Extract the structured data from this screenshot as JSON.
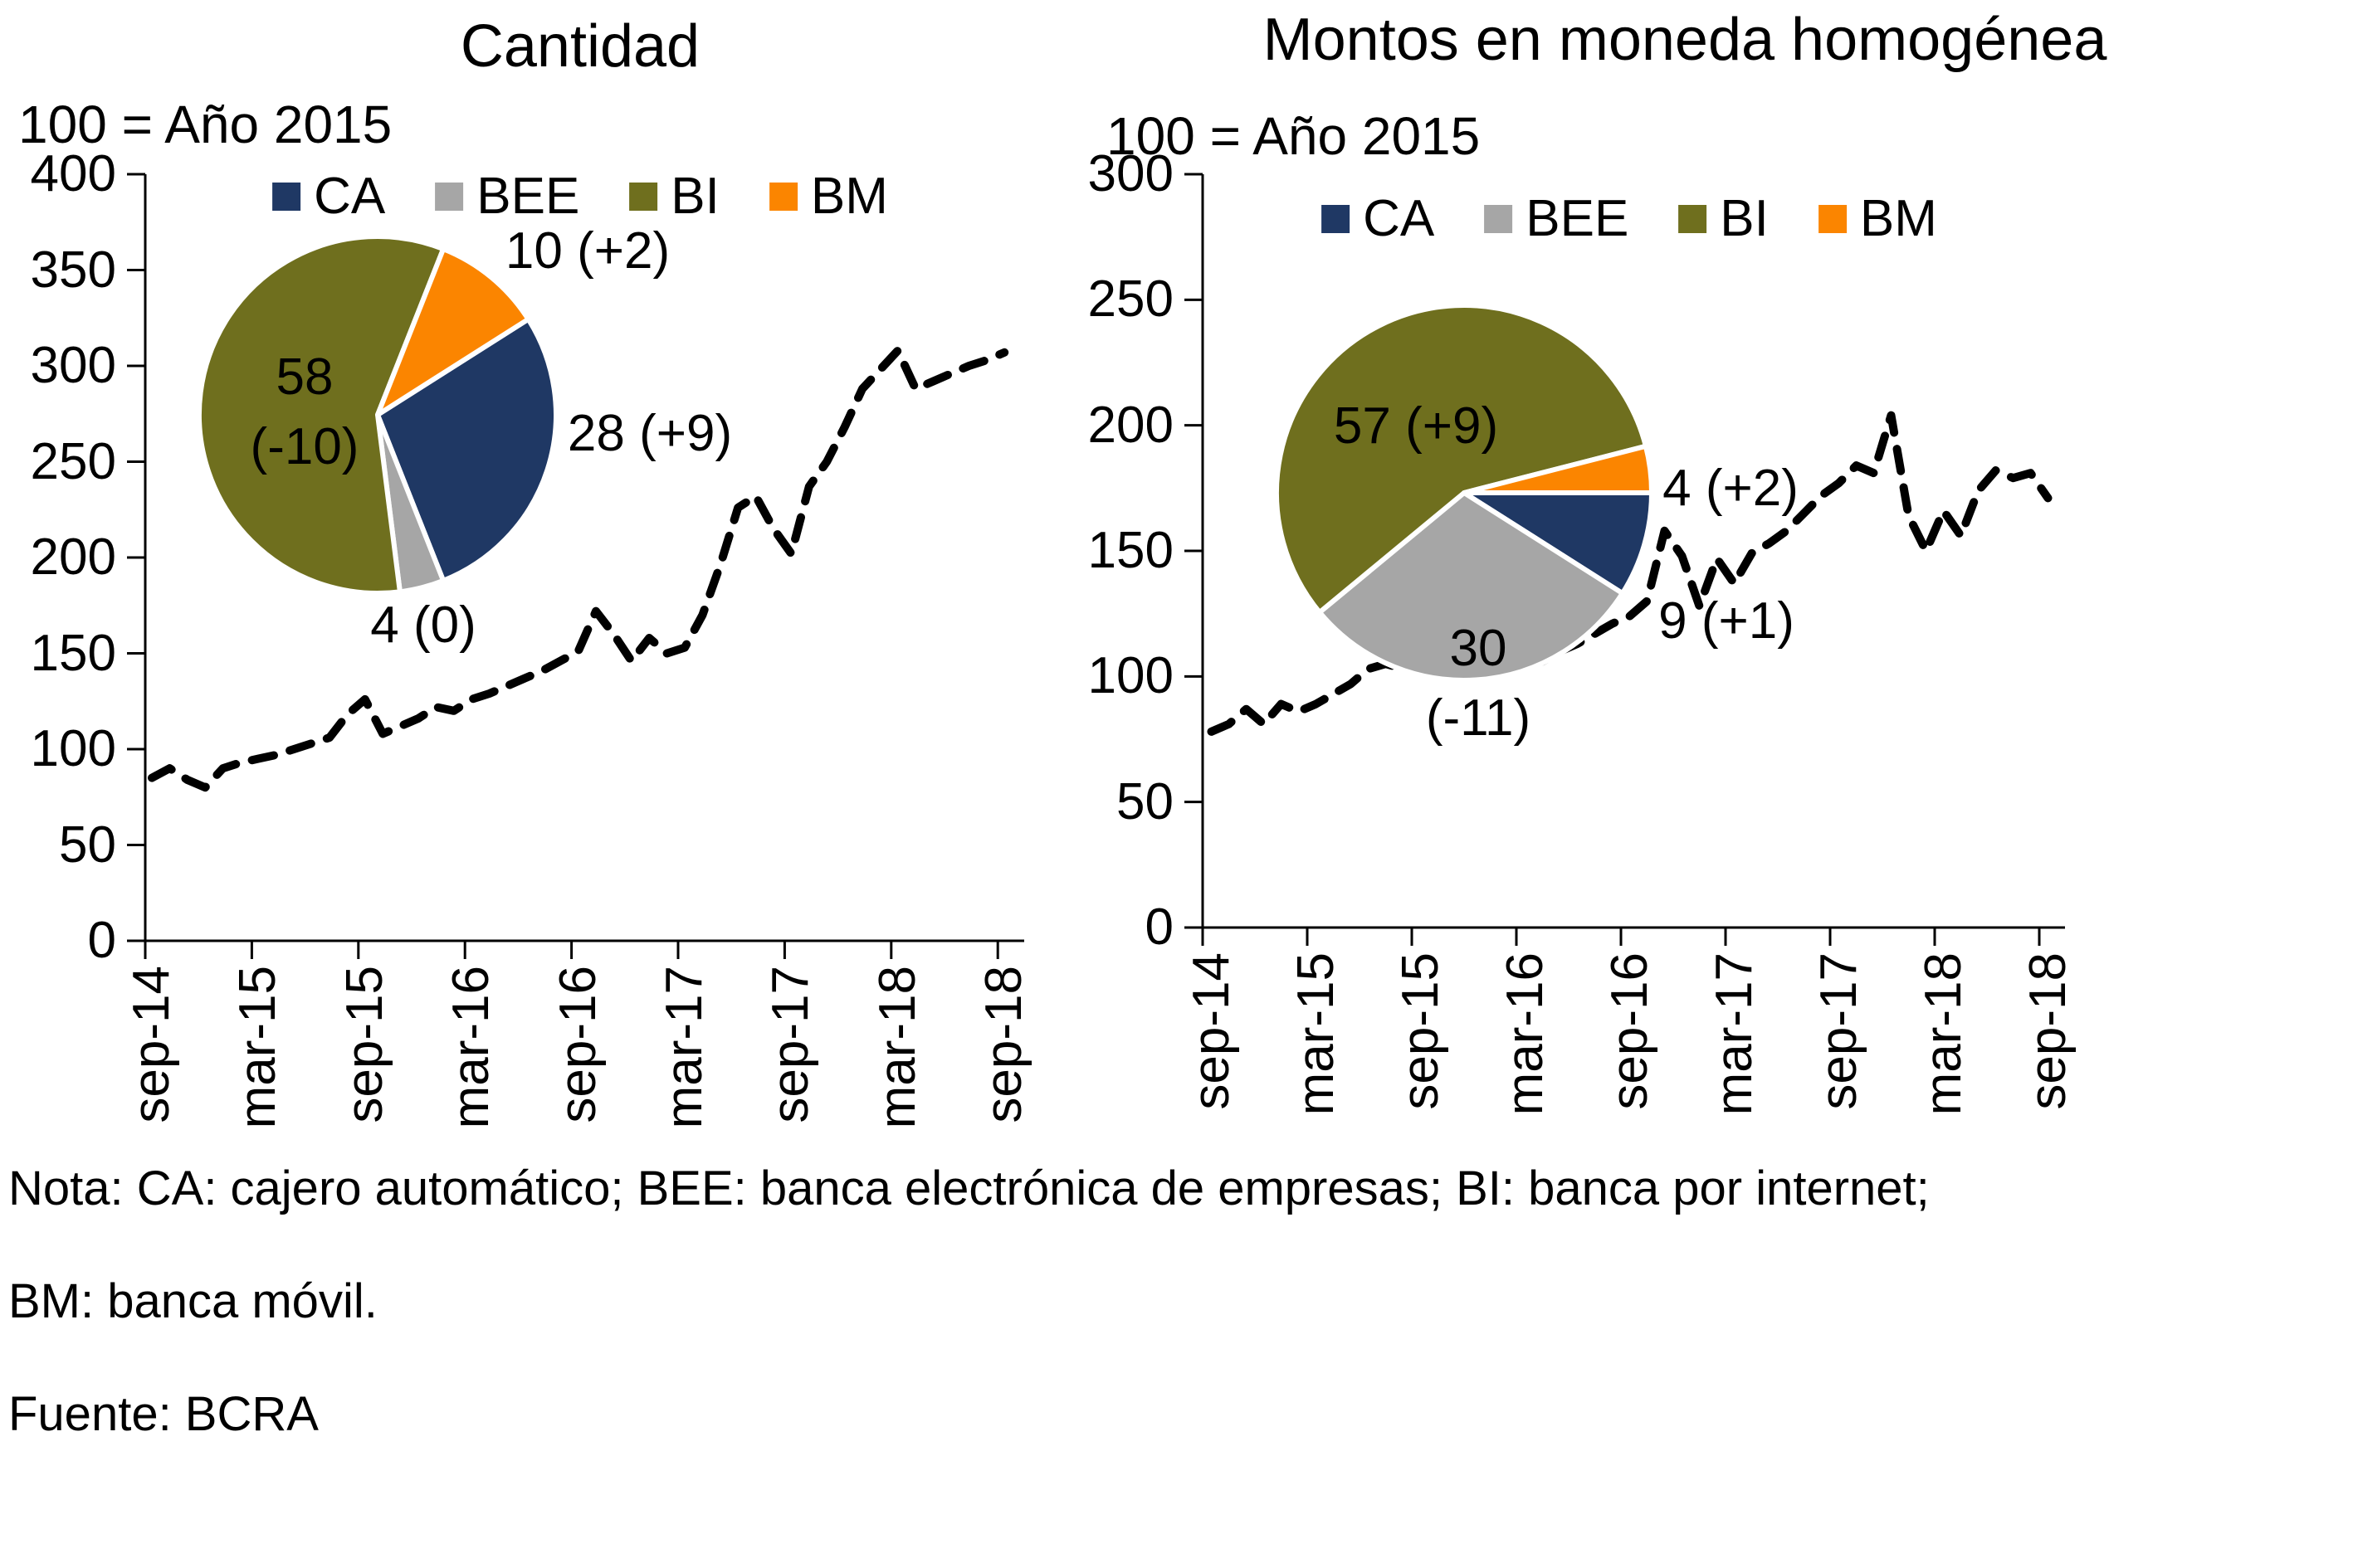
{
  "note": {
    "line1": "Nota: CA: cajero automático; BEE: banca electrónica de empresas; BI: banca por internet;",
    "line2": "BM: banca móvil.",
    "line3": "Fuente: BCRA"
  },
  "colors": {
    "ca_navy": "#1F3864",
    "bee_gray": "#A6A6A6",
    "bi_olive": "#6F6F1E",
    "bm_orange": "#FB8500",
    "line_black": "#000000"
  },
  "chart_data": [
    {
      "type": "line",
      "title": "Cantidad",
      "subtitle": "100 = Año 2015",
      "xlabel": "",
      "ylabel": "",
      "ylim": [
        0,
        400
      ],
      "y_ticks": [
        400,
        350,
        300,
        250,
        200,
        150,
        100,
        50,
        0
      ],
      "x_tick_labels": [
        "sep-14",
        "mar-15",
        "sep-15",
        "mar-16",
        "sep-16",
        "mar-17",
        "sep-17",
        "mar-18",
        "sep-18"
      ],
      "x_frequency": "monthly from sep-2014 to sep-2018 (49 points)",
      "grid": false,
      "legend": {
        "labels": [
          "CA",
          "BEE",
          "BI",
          "BM"
        ],
        "colors": [
          "#1F3864",
          "#A6A6A6",
          "#6F6F1E",
          "#FB8500"
        ],
        "position": "top-center-inside"
      },
      "line": {
        "name": "Cantidad (índice, 100 = Año 2015)",
        "style": "dashed",
        "color": "#000000",
        "values": [
          85,
          90,
          84,
          80,
          90,
          93,
          95,
          97,
          100,
          103,
          106,
          118,
          126,
          108,
          112,
          116,
          122,
          120,
          126,
          129,
          133,
          137,
          141,
          146,
          151,
          172,
          160,
          146,
          158,
          150,
          153,
          170,
          196,
          226,
          232,
          215,
          202,
          237,
          250,
          268,
          288,
          298,
          308,
          288,
          292,
          296,
          300,
          303,
          307
        ]
      },
      "inset_pie": {
        "type": "pie",
        "categories": [
          "CA",
          "BEE",
          "BI",
          "BM"
        ],
        "values": [
          28,
          4,
          58,
          10
        ],
        "colors": [
          "#1F3864",
          "#A6A6A6",
          "#6F6F1E",
          "#FB8500"
        ],
        "start_angle_deg": 57.6,
        "annotations": [
          "28 (+9)",
          "4 (0)",
          "58\n(-10)",
          "10 (+2)"
        ]
      }
    },
    {
      "type": "line",
      "title": "Montos en moneda homogénea",
      "subtitle": "100 = Año 2015",
      "xlabel": "",
      "ylabel": "",
      "ylim": [
        0,
        300
      ],
      "y_ticks": [
        300,
        250,
        200,
        150,
        100,
        50,
        0
      ],
      "x_tick_labels": [
        "sep-14",
        "mar-15",
        "sep-15",
        "mar-16",
        "sep-16",
        "mar-17",
        "sep-17",
        "mar-18",
        "sep-18"
      ],
      "x_frequency": "monthly from sep-2014 to sep-2018 (49 points)",
      "grid": false,
      "legend": {
        "labels": [
          "CA",
          "BEE",
          "BI",
          "BM"
        ],
        "colors": [
          "#1F3864",
          "#A6A6A6",
          "#6F6F1E",
          "#FB8500"
        ],
        "position": "top-center-inside"
      },
      "line": {
        "name": "Montos en moneda homogénea (índice, 100 = Año 2015)",
        "style": "dashed",
        "color": "#000000",
        "values": [
          78,
          81,
          87,
          81,
          89,
          86,
          89,
          93,
          97,
          103,
          105,
          103,
          108,
          113,
          119,
          109,
          113,
          106,
          109,
          106,
          110,
          113,
          117,
          121,
          124,
          130,
          158,
          148,
          128,
          147,
          137,
          149,
          153,
          158,
          165,
          172,
          177,
          184,
          181,
          204,
          164,
          150,
          166,
          156,
          174,
          182,
          179,
          181,
          171
        ]
      },
      "inset_pie": {
        "type": "pie",
        "categories": [
          "CA",
          "BEE",
          "BI",
          "BM"
        ],
        "values": [
          9,
          30,
          57,
          4
        ],
        "colors": [
          "#1F3864",
          "#A6A6A6",
          "#6F6F1E",
          "#FB8500"
        ],
        "start_angle_deg": 90,
        "annotations": [
          "9 (+1)",
          "30\n(-11)",
          "57 (+9)",
          "4 (+2)"
        ]
      }
    }
  ]
}
